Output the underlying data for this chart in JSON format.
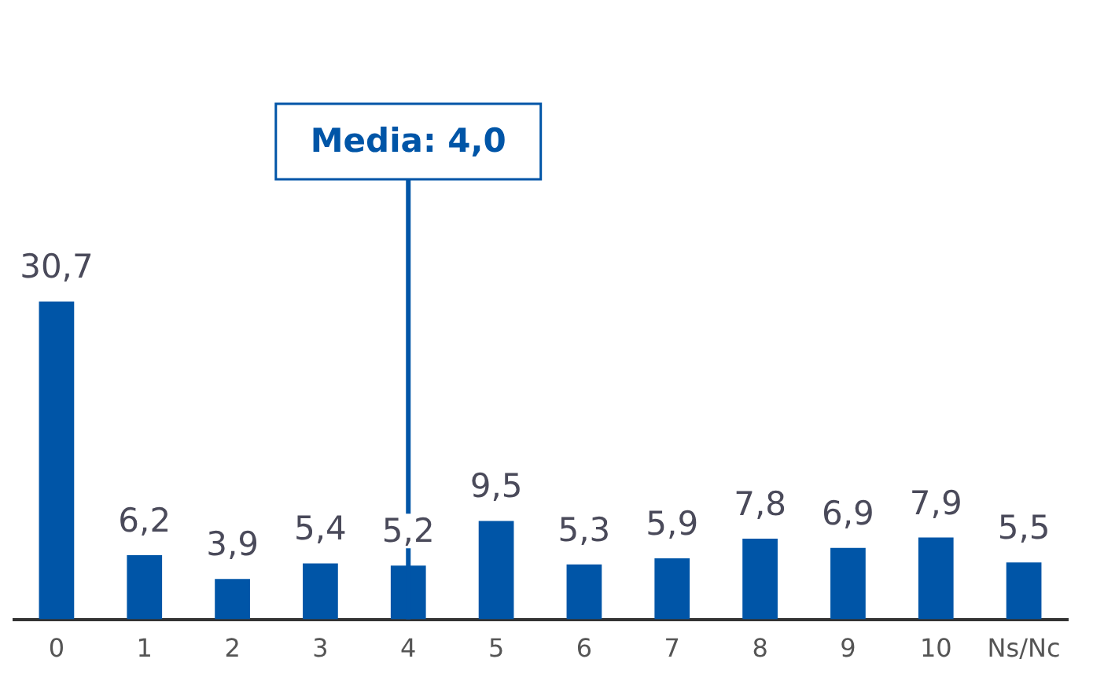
{
  "chart_data": {
    "type": "bar",
    "categories": [
      "0",
      "1",
      "2",
      "3",
      "4",
      "5",
      "6",
      "7",
      "8",
      "9",
      "10",
      "Ns/Nc"
    ],
    "values": [
      30.7,
      6.2,
      3.9,
      5.4,
      5.2,
      9.5,
      5.3,
      5.9,
      7.8,
      6.9,
      7.9,
      5.5
    ],
    "value_labels": [
      "30,7",
      "6,2",
      "3,9",
      "5,4",
      "5,2",
      "9,5",
      "5,3",
      "5,9",
      "7,8",
      "6,9",
      "7,9",
      "5,5"
    ],
    "color": "#0055a7",
    "grid": false,
    "legend": false,
    "ref_lines": [
      {
        "axis": "x",
        "value": "4",
        "label": "Media: 4,0",
        "color": "#0055a7"
      }
    ]
  }
}
